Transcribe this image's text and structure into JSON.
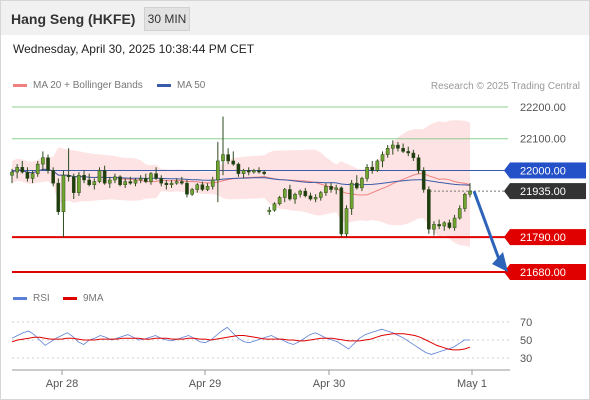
{
  "header": {
    "title": "Hang Seng (HKFE)",
    "interval": "30 MIN"
  },
  "datetime": "Wednesday, April 30, 2025 10:38:44 PM CET",
  "legend": {
    "ma20": {
      "label": "MA 20 + Bollinger Bands",
      "color": "#f08080"
    },
    "ma50": {
      "label": "MA 50",
      "color": "#3a5ba9"
    }
  },
  "research": "Research © 2025 Trading Central",
  "rsi_legend": {
    "rsi": {
      "label": "RSI",
      "color": "#5b7fd6"
    },
    "ma": {
      "label": "9MA",
      "color": "#e00000"
    }
  },
  "chart_data": [
    {
      "type": "line",
      "title": "Hang Seng (HKFE)",
      "x_labels": [
        "Apr 28",
        "Apr 29",
        "Apr 30",
        "May 1"
      ],
      "y_ticks": [
        22200,
        22100,
        22000,
        21935,
        21790,
        21680
      ],
      "ylim": [
        21650,
        22250
      ],
      "last_price": 21935,
      "ma50_level": 22000,
      "levels": [
        {
          "value": 22200,
          "label": "22200.00",
          "style": "green"
        },
        {
          "value": 22100,
          "label": "22100.00",
          "style": "green"
        },
        {
          "value": 22000,
          "label": "22000.00",
          "style": "blue"
        },
        {
          "value": 21935,
          "label": "21935.00",
          "style": "dark"
        },
        {
          "value": 21790,
          "label": "21790.00",
          "style": "red"
        },
        {
          "value": 21680,
          "label": "21680.00",
          "style": "red"
        }
      ],
      "candles": [
        {
          "o": 21985,
          "h": 22005,
          "l": 21960,
          "c": 21995
        },
        {
          "o": 21995,
          "h": 22020,
          "l": 21975,
          "c": 22010
        },
        {
          "o": 22010,
          "h": 22030,
          "l": 21990,
          "c": 21995
        },
        {
          "o": 21995,
          "h": 22010,
          "l": 21965,
          "c": 21975
        },
        {
          "o": 21975,
          "h": 22000,
          "l": 21960,
          "c": 21990
        },
        {
          "o": 21990,
          "h": 22030,
          "l": 21980,
          "c": 22020
        },
        {
          "o": 22020,
          "h": 22060,
          "l": 22000,
          "c": 22040
        },
        {
          "o": 22040,
          "h": 22050,
          "l": 21990,
          "c": 22000
        },
        {
          "o": 22000,
          "h": 22010,
          "l": 21950,
          "c": 21960
        },
        {
          "o": 21960,
          "h": 21975,
          "l": 21860,
          "c": 21870
        },
        {
          "o": 21870,
          "h": 22000,
          "l": 21790,
          "c": 21985
        },
        {
          "o": 21985,
          "h": 22070,
          "l": 21965,
          "c": 21980
        },
        {
          "o": 21980,
          "h": 21990,
          "l": 21910,
          "c": 21930
        },
        {
          "o": 21930,
          "h": 21995,
          "l": 21920,
          "c": 21985
        },
        {
          "o": 21985,
          "h": 22000,
          "l": 21960,
          "c": 21970
        },
        {
          "o": 21970,
          "h": 21990,
          "l": 21950,
          "c": 21955
        },
        {
          "o": 21955,
          "h": 21975,
          "l": 21940,
          "c": 21965
        },
        {
          "o": 21965,
          "h": 22010,
          "l": 21960,
          "c": 22000
        },
        {
          "o": 22000,
          "h": 22015,
          "l": 21955,
          "c": 21960
        },
        {
          "o": 21960,
          "h": 21980,
          "l": 21945,
          "c": 21970
        },
        {
          "o": 21970,
          "h": 21990,
          "l": 21960,
          "c": 21980
        },
        {
          "o": 21980,
          "h": 21985,
          "l": 21950,
          "c": 21955
        },
        {
          "o": 21955,
          "h": 21975,
          "l": 21945,
          "c": 21965
        },
        {
          "o": 21965,
          "h": 21980,
          "l": 21955,
          "c": 21960
        },
        {
          "o": 21960,
          "h": 21975,
          "l": 21950,
          "c": 21970
        },
        {
          "o": 21970,
          "h": 21985,
          "l": 21960,
          "c": 21975
        },
        {
          "o": 21975,
          "h": 21990,
          "l": 21960,
          "c": 21965
        },
        {
          "o": 21965,
          "h": 21995,
          "l": 21955,
          "c": 21990
        },
        {
          "o": 21990,
          "h": 22010,
          "l": 21970,
          "c": 21975
        },
        {
          "o": 21975,
          "h": 21985,
          "l": 21950,
          "c": 21960
        },
        {
          "o": 21960,
          "h": 21970,
          "l": 21940,
          "c": 21955
        },
        {
          "o": 21955,
          "h": 21970,
          "l": 21945,
          "c": 21960
        },
        {
          "o": 21960,
          "h": 21975,
          "l": 21955,
          "c": 21965
        },
        {
          "o": 21965,
          "h": 21980,
          "l": 21955,
          "c": 21960
        },
        {
          "o": 21960,
          "h": 21970,
          "l": 21915,
          "c": 21925
        },
        {
          "o": 21925,
          "h": 21945,
          "l": 21920,
          "c": 21940
        },
        {
          "o": 21940,
          "h": 21960,
          "l": 21930,
          "c": 21955
        },
        {
          "o": 21955,
          "h": 21965,
          "l": 21935,
          "c": 21940
        },
        {
          "o": 21940,
          "h": 21960,
          "l": 21935,
          "c": 21950
        },
        {
          "o": 21950,
          "h": 21980,
          "l": 21940,
          "c": 21970
        },
        {
          "o": 21970,
          "h": 22090,
          "l": 21900,
          "c": 22030
        },
        {
          "o": 22030,
          "h": 22170,
          "l": 21985,
          "c": 22050
        },
        {
          "o": 22050,
          "h": 22070,
          "l": 22020,
          "c": 22030
        },
        {
          "o": 22030,
          "h": 22060,
          "l": 22015,
          "c": 22020
        },
        {
          "o": 22020,
          "h": 22025,
          "l": 21980,
          "c": 21990
        },
        {
          "o": 21990,
          "h": 22005,
          "l": 21975,
          "c": 22000
        },
        {
          "o": 22000,
          "h": 22010,
          "l": 21985,
          "c": 21995
        },
        {
          "o": 21995,
          "h": 22005,
          "l": 21990,
          "c": 22000
        },
        {
          "o": 22000,
          "h": 22010,
          "l": 21990,
          "c": 21995
        },
        {
          "o": 21995,
          "h": 22000,
          "l": 21985,
          "c": 21990
        },
        {
          "o": 21870,
          "h": 21885,
          "l": 21860,
          "c": 21875
        },
        {
          "o": 21875,
          "h": 21900,
          "l": 21870,
          "c": 21895
        },
        {
          "o": 21895,
          "h": 21920,
          "l": 21890,
          "c": 21915
        },
        {
          "o": 21915,
          "h": 21945,
          "l": 21900,
          "c": 21940
        },
        {
          "o": 21940,
          "h": 21955,
          "l": 21905,
          "c": 21910
        },
        {
          "o": 21910,
          "h": 21930,
          "l": 21895,
          "c": 21925
        },
        {
          "o": 21925,
          "h": 21940,
          "l": 21915,
          "c": 21935
        },
        {
          "o": 21935,
          "h": 21945,
          "l": 21915,
          "c": 21920
        },
        {
          "o": 21920,
          "h": 21930,
          "l": 21905,
          "c": 21910
        },
        {
          "o": 21910,
          "h": 21925,
          "l": 21900,
          "c": 21915
        },
        {
          "o": 21915,
          "h": 21935,
          "l": 21905,
          "c": 21930
        },
        {
          "o": 21930,
          "h": 21960,
          "l": 21920,
          "c": 21950
        },
        {
          "o": 21950,
          "h": 21960,
          "l": 21930,
          "c": 21940
        },
        {
          "o": 21940,
          "h": 21955,
          "l": 21925,
          "c": 21945
        },
        {
          "o": 21945,
          "h": 21950,
          "l": 21790,
          "c": 21800
        },
        {
          "o": 21800,
          "h": 21890,
          "l": 21790,
          "c": 21880
        },
        {
          "o": 21880,
          "h": 21970,
          "l": 21860,
          "c": 21960
        },
        {
          "o": 21960,
          "h": 21985,
          "l": 21940,
          "c": 21945
        },
        {
          "o": 21945,
          "h": 21980,
          "l": 21935,
          "c": 21975
        },
        {
          "o": 21975,
          "h": 22020,
          "l": 21965,
          "c": 22010
        },
        {
          "o": 22010,
          "h": 22030,
          "l": 21990,
          "c": 22000
        },
        {
          "o": 22000,
          "h": 22035,
          "l": 21995,
          "c": 22030
        },
        {
          "o": 22030,
          "h": 22060,
          "l": 22010,
          "c": 22050
        },
        {
          "o": 22050,
          "h": 22080,
          "l": 22040,
          "c": 22070
        },
        {
          "o": 22070,
          "h": 22095,
          "l": 22050,
          "c": 22080
        },
        {
          "o": 22080,
          "h": 22090,
          "l": 22060,
          "c": 22070
        },
        {
          "o": 22070,
          "h": 22085,
          "l": 22055,
          "c": 22060
        },
        {
          "o": 22060,
          "h": 22075,
          "l": 22045,
          "c": 22055
        },
        {
          "o": 22055,
          "h": 22065,
          "l": 22030,
          "c": 22040
        },
        {
          "o": 22040,
          "h": 22050,
          "l": 21990,
          "c": 22000
        },
        {
          "o": 22000,
          "h": 22010,
          "l": 21930,
          "c": 21940
        },
        {
          "o": 21940,
          "h": 21950,
          "l": 21800,
          "c": 21815
        },
        {
          "o": 21815,
          "h": 21840,
          "l": 21795,
          "c": 21830
        },
        {
          "o": 21830,
          "h": 21845,
          "l": 21815,
          "c": 21825
        },
        {
          "o": 21825,
          "h": 21840,
          "l": 21810,
          "c": 21835
        },
        {
          "o": 21835,
          "h": 21845,
          "l": 21815,
          "c": 21820
        },
        {
          "o": 21820,
          "h": 21860,
          "l": 21810,
          "c": 21850
        },
        {
          "o": 21850,
          "h": 21890,
          "l": 21845,
          "c": 21880
        },
        {
          "o": 21880,
          "h": 21930,
          "l": 21870,
          "c": 21925
        },
        {
          "o": 21925,
          "h": 21960,
          "l": 21915,
          "c": 21935
        }
      ],
      "projection": {
        "from": 21935,
        "to": 21680
      }
    },
    {
      "type": "line",
      "title": "RSI",
      "y_ticks": [
        70,
        50,
        30
      ],
      "ylim": [
        20,
        80
      ],
      "series": [
        {
          "name": "RSI",
          "values": [
            52,
            55,
            58,
            60,
            56,
            50,
            44,
            48,
            52,
            55,
            58,
            54,
            48,
            45,
            50,
            52,
            55,
            53,
            50,
            52,
            54,
            56,
            53,
            50,
            51,
            53,
            55,
            52,
            50,
            49,
            51,
            53,
            55,
            52,
            48,
            47,
            50,
            55,
            60,
            64,
            58,
            52,
            48,
            47,
            49,
            51,
            53,
            55,
            52,
            50,
            47,
            45,
            48,
            52,
            56,
            58,
            55,
            52,
            50,
            48,
            44,
            40,
            46,
            52,
            56,
            58,
            60,
            62,
            60,
            58,
            55,
            52,
            48,
            44,
            40,
            36,
            34,
            36,
            38,
            40,
            42,
            46,
            50,
            50
          ]
        },
        {
          "name": "9MA",
          "values": [
            48,
            50,
            51,
            52,
            53,
            53,
            52,
            51,
            51,
            51,
            52,
            52,
            51,
            50,
            50,
            50,
            51,
            51,
            51,
            51,
            52,
            52,
            52,
            52,
            51,
            51,
            52,
            52,
            52,
            51,
            51,
            51,
            52,
            52,
            51,
            51,
            50,
            51,
            52,
            53,
            54,
            55,
            55,
            54,
            53,
            52,
            51,
            51,
            51,
            51,
            50,
            50,
            49,
            49,
            50,
            51,
            52,
            52,
            52,
            51,
            50,
            49,
            49,
            49,
            50,
            51,
            53,
            55,
            56,
            57,
            57,
            57,
            56,
            55,
            53,
            50,
            47,
            44,
            42,
            40,
            39,
            39,
            40,
            42
          ]
        }
      ]
    }
  ]
}
